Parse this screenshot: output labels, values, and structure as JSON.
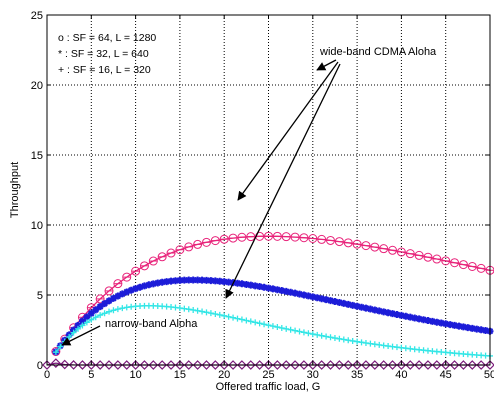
{
  "chart_data": {
    "type": "line",
    "xlabel": "Offered traffic load, G",
    "ylabel": "Throughput",
    "xlim": [
      0,
      50
    ],
    "ylim": [
      0,
      25
    ],
    "x_ticks": [
      "0",
      "5",
      "10",
      "15",
      "20",
      "25",
      "30",
      "35",
      "40",
      "45",
      "50"
    ],
    "y_ticks": [
      "0",
      "5",
      "10",
      "15",
      "20",
      "25"
    ],
    "grid": "dotted",
    "legend": [
      "o : SF = 64, L = 1280",
      "* : SF = 32,  L = 640",
      "+ : SF = 16, L = 320"
    ],
    "annotations": [
      "wide-band CDMA Aloha",
      "narrow-band Aloha"
    ],
    "series": [
      {
        "marker": "circle",
        "color": "#e8237a",
        "formula": "x * exp(-x / 25)",
        "x_range": [
          1,
          50
        ],
        "x_step": 1
      },
      {
        "marker": "star",
        "color": "#1c1cd8",
        "formula": "x * exp(-x / 16.5)",
        "x_range": [
          1,
          50
        ],
        "x_step": 0.5
      },
      {
        "marker": "plus",
        "color": "#33e6e6",
        "formula": "x * exp(-x / 11.5)",
        "x_range": [
          1,
          50
        ],
        "x_step": 0.5
      },
      {
        "marker": "diamond",
        "color": "#7a1a7a",
        "formula": "x * exp(-2 * x)",
        "x_range": [
          0,
          50
        ],
        "x_step": 1
      }
    ]
  }
}
